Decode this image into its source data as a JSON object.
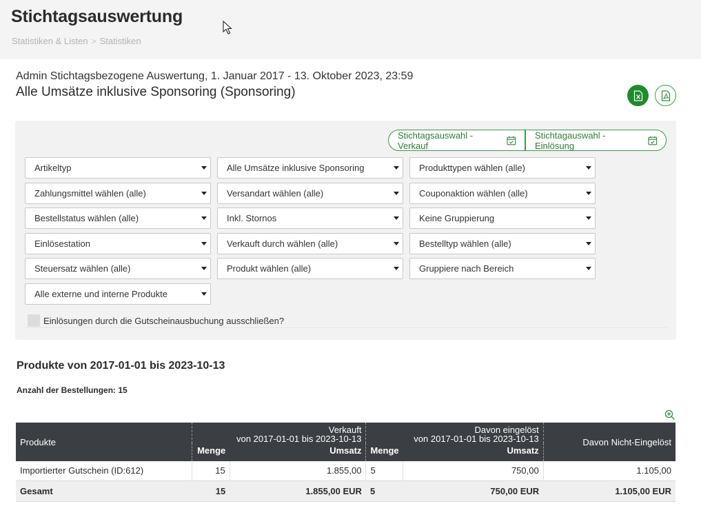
{
  "header": {
    "title": "Stichtagsauswertung",
    "breadcrumb": [
      "Statistiken & Listen",
      "Statistiken"
    ],
    "breadcrumb_sep": ">"
  },
  "report": {
    "line1": "Admin Stichtagsbezogene Auswertung, 1. Januar 2017 - 13. Oktober 2023, 23:59",
    "line2": "Alle Umsätze inklusive Sponsoring (Sponsoring)"
  },
  "date_buttons": {
    "sale": "Stichtagsauswahl - Verkauf",
    "redeem": "Stichtagauswahl - Einlösung"
  },
  "filters": {
    "col1": [
      "Artikeltyp",
      "Zahlungsmittel wählen (alle)",
      "Bestellstatus wählen (alle)",
      "Einlösestation",
      "Steuersatz wählen (alle)",
      "Alle externe und interne Produkte"
    ],
    "col2": [
      "Alle Umsätze inklusive Sponsoring",
      "Versandart wählen (alle)",
      "Inkl. Stornos",
      "Verkauft durch wählen (alle)",
      "Produkt wählen (alle)"
    ],
    "col3": [
      "Produkttypen wählen (alle)",
      "Couponaktion wählen (alle)",
      "Keine Gruppierung",
      "Bestelltyp wählen (alle)",
      "Gruppiere nach Bereich"
    ]
  },
  "checkbox_label": "Einlösungen durch die Gutscheinausbuchung ausschließen?",
  "section": {
    "title": "Produkte von 2017-01-01 bis 2023-10-13",
    "orders_label": "Anzahl der Bestellungen: 15"
  },
  "table": {
    "col_products": "Produkte",
    "sold_title": "Verkauft",
    "sold_range": "von 2017-01-01 bis 2023-10-13",
    "redeemed_title": "Davon eingelöst",
    "redeemed_range": "von 2017-01-01 bis 2023-10-13",
    "not_redeemed": "Davon Nicht-Eingelöst",
    "qty": "Menge",
    "revenue": "Umsatz",
    "rows": [
      {
        "product": "Importierter Gutschein (ID:612)",
        "sold_qty": "15",
        "sold_rev": "1.855,00",
        "red_qty": "5",
        "red_rev": "750,00",
        "not_red": "1.105,00"
      }
    ],
    "total": {
      "label": "Gesamt",
      "sold_qty": "15",
      "sold_rev": "1.855,00 EUR",
      "red_qty": "5",
      "red_rev": "750,00 EUR",
      "not_red": "1.105,00 EUR"
    }
  },
  "colors": {
    "accent_green": "#1f8a2e",
    "table_header": "#3b3e42",
    "panel_bg": "#f2f2f2"
  },
  "icons": [
    "cursor-icon",
    "excel-export-icon",
    "pdf-export-icon",
    "calendar-icon",
    "chevron-down-icon",
    "zoom-in-icon"
  ]
}
